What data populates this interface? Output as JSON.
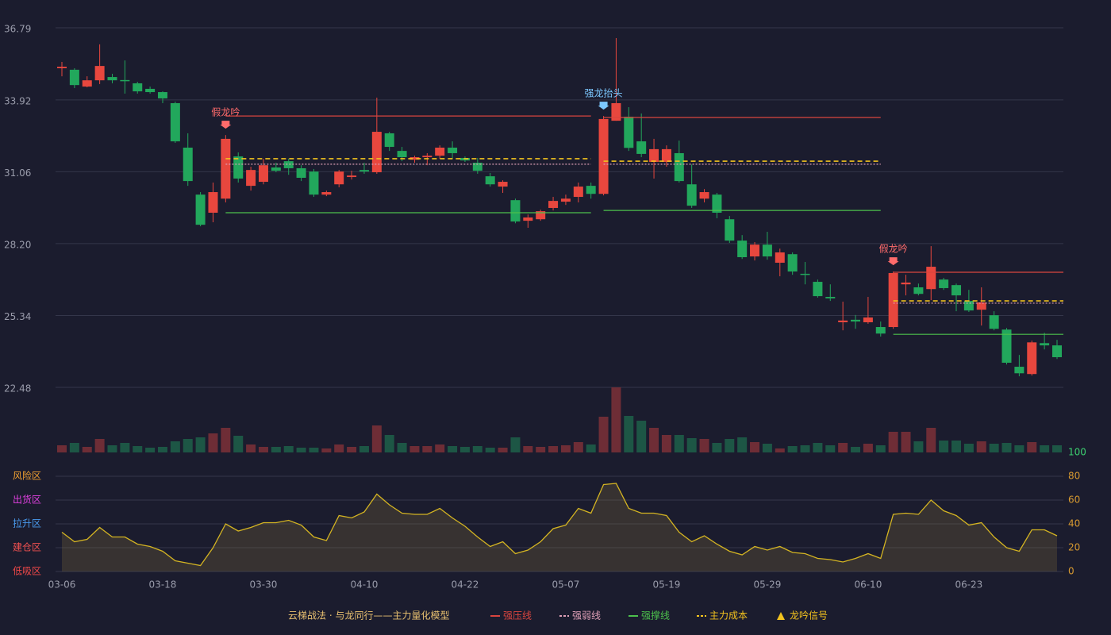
{
  "chart_data": [
    {
      "type": "candlestick",
      "title": "云梯战法 · 与龙同行——主力量化模型",
      "categories": [
        "03-06",
        null,
        null,
        null,
        null,
        null,
        null,
        null,
        "03-18",
        null,
        null,
        null,
        null,
        null,
        null,
        null,
        "03-30",
        null,
        null,
        null,
        null,
        null,
        null,
        null,
        "04-10",
        null,
        null,
        null,
        null,
        null,
        null,
        null,
        "04-22",
        null,
        null,
        null,
        null,
        null,
        null,
        null,
        "05-07",
        null,
        null,
        null,
        null,
        null,
        null,
        null,
        "05-19",
        null,
        null,
        null,
        null,
        null,
        null,
        null,
        "05-29",
        null,
        null,
        null,
        null,
        null,
        null,
        null,
        "06-10",
        null,
        null,
        null,
        null,
        null,
        null,
        null,
        "06-23",
        null,
        null,
        null,
        null,
        null,
        null,
        null
      ],
      "open": [
        35.18,
        35.12,
        34.45,
        34.7,
        34.83,
        34.71,
        34.58,
        34.36,
        34.23,
        33.79,
        32.02,
        30.15,
        29.43,
        29.99,
        31.67,
        30.5,
        30.66,
        31.23,
        31.48,
        31.2,
        31.07,
        30.15,
        30.56,
        30.85,
        31.13,
        31.04,
        32.59,
        31.89,
        31.54,
        31.64,
        31.7,
        32.02,
        31.61,
        31.42,
        30.88,
        30.47,
        29.93,
        29.11,
        29.17,
        29.62,
        29.87,
        30.06,
        30.5,
        30.18,
        33.09,
        33.25,
        32.27,
        31.45,
        31.45,
        31.8,
        30.56,
        29.99,
        30.15,
        29.17,
        28.32,
        27.69,
        28.16,
        27.44,
        27.78,
        27.0,
        26.68,
        26.08,
        25.07,
        25.17,
        25.07,
        24.88,
        24.88,
        26.58,
        26.46,
        26.39,
        26.77,
        26.55,
        25.92,
        25.57,
        25.35,
        24.78,
        23.3,
        23.01,
        24.24,
        24.15
      ],
      "close": [
        35.24,
        34.51,
        34.7,
        35.27,
        34.7,
        34.67,
        34.26,
        34.23,
        33.98,
        32.27,
        30.69,
        28.95,
        30.25,
        32.37,
        30.79,
        31.13,
        31.32,
        31.1,
        31.2,
        30.82,
        30.15,
        30.25,
        31.07,
        30.91,
        31.07,
        32.65,
        32.05,
        31.64,
        31.64,
        31.7,
        32.02,
        31.8,
        31.51,
        31.1,
        30.56,
        30.66,
        29.08,
        29.24,
        29.49,
        29.9,
        29.99,
        30.47,
        30.18,
        33.16,
        33.79,
        32.01,
        31.77,
        31.96,
        31.96,
        30.69,
        29.71,
        30.25,
        29.43,
        28.32,
        27.66,
        28.16,
        27.69,
        27.85,
        27.09,
        26.96,
        26.11,
        26.02,
        25.14,
        25.1,
        25.26,
        24.62,
        27.03,
        26.65,
        26.2,
        27.28,
        26.43,
        26.14,
        25.54,
        25.86,
        24.81,
        23.46,
        23.04,
        24.27,
        24.15,
        23.68
      ],
      "high": [
        35.43,
        35.18,
        34.86,
        36.13,
        34.96,
        35.49,
        34.64,
        34.45,
        34.26,
        33.85,
        32.59,
        30.25,
        30.63,
        32.52,
        31.83,
        31.26,
        31.58,
        31.42,
        31.58,
        31.32,
        31.17,
        30.31,
        31.13,
        31.1,
        31.42,
        34.01,
        32.65,
        32.05,
        31.7,
        31.8,
        32.11,
        32.27,
        31.67,
        31.61,
        31.01,
        30.72,
        29.99,
        29.36,
        29.55,
        30.06,
        30.15,
        30.63,
        30.63,
        33.28,
        36.38,
        33.63,
        33.38,
        32.37,
        32.11,
        32.3,
        31.35,
        30.37,
        30.22,
        29.3,
        28.54,
        28.26,
        28.67,
        28.0,
        27.85,
        27.47,
        26.77,
        26.58,
        25.89,
        25.36,
        26.08,
        25.1,
        27.09,
        26.96,
        26.61,
        28.1,
        26.84,
        26.61,
        26.36,
        26.46,
        25.51,
        24.84,
        23.77,
        24.34,
        24.65,
        24.37
      ],
      "low": [
        34.86,
        34.39,
        34.42,
        34.55,
        34.58,
        34.17,
        34.17,
        34.17,
        33.79,
        32.21,
        30.5,
        28.89,
        29.05,
        29.84,
        30.63,
        30.31,
        30.56,
        31.04,
        30.94,
        30.69,
        30.06,
        30.09,
        30.44,
        30.75,
        30.98,
        30.98,
        31.89,
        31.48,
        31.42,
        31.32,
        31.58,
        31.58,
        31.45,
        30.98,
        30.47,
        30.22,
        29.01,
        28.83,
        29.11,
        29.52,
        29.74,
        29.84,
        29.99,
        30.12,
        33.09,
        31.89,
        31.64,
        30.79,
        31.26,
        30.63,
        29.62,
        29.84,
        29.21,
        28.23,
        27.59,
        27.53,
        27.56,
        26.9,
        26.96,
        26.58,
        26.05,
        25.92,
        24.75,
        24.81,
        25.01,
        24.5,
        24.81,
        26.14,
        26.14,
        25.95,
        26.36,
        25.51,
        25.48,
        24.94,
        24.75,
        23.39,
        22.92,
        22.95,
        23.99,
        23.61
      ],
      "up_color": "#e8473e",
      "down_color": "#22a75c",
      "ylim": [
        22.48,
        36.79
      ],
      "yticks": [
        22.48,
        25.34,
        {
          "value": 28.2,
          "label": "28.20"
        },
        31.06,
        33.92,
        36.79
      ],
      "grid": true,
      "levels": [
        {
          "name": "强压线",
          "color": "#d9453f",
          "style": "solid",
          "segments": [
            {
              "from": 13,
              "to": 42,
              "value": 33.28
            },
            {
              "from": 43,
              "to": 65,
              "value": 33.22
            },
            {
              "from": 66,
              "to": 79,
              "value": 27.06
            }
          ]
        },
        {
          "name": "强弱线",
          "color": "#e0a0b8",
          "style": "dotted",
          "segments": [
            {
              "from": 13,
              "to": 42,
              "value": 31.36
            },
            {
              "from": 43,
              "to": 65,
              "value": 31.36
            },
            {
              "from": 66,
              "to": 79,
              "value": 25.83
            }
          ]
        },
        {
          "name": "强撑线",
          "color": "#4cc04c",
          "style": "solid",
          "segments": [
            {
              "from": 13,
              "to": 42,
              "value": 29.43
            },
            {
              "from": 43,
              "to": 65,
              "value": 29.52
            },
            {
              "from": 66,
              "to": 79,
              "value": 24.59
            }
          ]
        },
        {
          "name": "主力成本",
          "color": "#f2c21e",
          "style": "dashed",
          "segments": [
            {
              "from": 13,
              "to": 42,
              "value": 31.58
            },
            {
              "from": 43,
              "to": 65,
              "value": 31.48
            },
            {
              "from": 66,
              "to": 79,
              "value": 25.92
            }
          ]
        }
      ],
      "signal_name": "龙吟信号",
      "signal_color": "#f2c21e",
      "signals": [
        {
          "index": 13,
          "label": "假龙吟",
          "color": "#ff6b6b"
        },
        {
          "index": 43,
          "label": "强龙抬头",
          "color": "#7cc8ff"
        },
        {
          "index": 66,
          "label": "假龙吟",
          "color": "#ff6b6b"
        }
      ]
    },
    {
      "type": "volume",
      "values": [
        9,
        12,
        7,
        17,
        9,
        12,
        8,
        6,
        7,
        14,
        17,
        19,
        24,
        31,
        21,
        10,
        7,
        7,
        8,
        6,
        6,
        5,
        10,
        7,
        8,
        34,
        22,
        12,
        8,
        8,
        10,
        8,
        7,
        8,
        6,
        6,
        19,
        8,
        7,
        8,
        9,
        13,
        10,
        45,
        82,
        46,
        40,
        31,
        22,
        22,
        18,
        17,
        12,
        17,
        19,
        13,
        11,
        5,
        8,
        9,
        12,
        9,
        12,
        7,
        11,
        9,
        26,
        26,
        14,
        31,
        15,
        15,
        11,
        14,
        11,
        12,
        9,
        13,
        9,
        9
      ],
      "ylim": [
        0,
        82
      ],
      "up_color": "#6e2d36",
      "down_color": "#1d5645"
    },
    {
      "type": "area",
      "values": [
        33,
        25,
        27,
        37,
        29,
        29,
        23,
        21,
        17,
        9,
        7,
        5,
        20,
        40,
        34,
        37,
        41,
        41,
        43,
        39,
        29,
        26,
        47,
        45,
        50,
        65,
        56,
        49,
        48,
        48,
        53,
        45,
        38,
        29,
        21,
        25,
        15,
        18,
        25,
        36,
        39,
        53,
        49,
        73,
        74,
        53,
        49,
        49,
        47,
        33,
        25,
        30,
        23,
        17,
        14,
        21,
        18,
        21,
        16,
        15,
        11,
        10,
        8,
        11,
        15,
        11,
        48,
        49,
        48,
        60,
        51,
        47,
        39,
        41,
        29,
        20,
        17,
        35,
        35,
        30
      ],
      "color": "#d4b422",
      "ylim": [
        0,
        100
      ],
      "yticks": [
        0,
        20,
        40,
        60,
        80,
        100
      ],
      "grid": true,
      "zones": [
        {
          "label": "风险区",
          "value": 80,
          "color": "#f0a030"
        },
        {
          "label": "出货区",
          "value": 60,
          "color": "#e040e0"
        },
        {
          "label": "拉升区",
          "value": 40,
          "color": "#4a9cf0"
        },
        {
          "label": "建仓区",
          "value": 20,
          "color": "#f05050"
        },
        {
          "label": "低吸区",
          "value": 0,
          "color": "#f04848"
        }
      ]
    }
  ]
}
